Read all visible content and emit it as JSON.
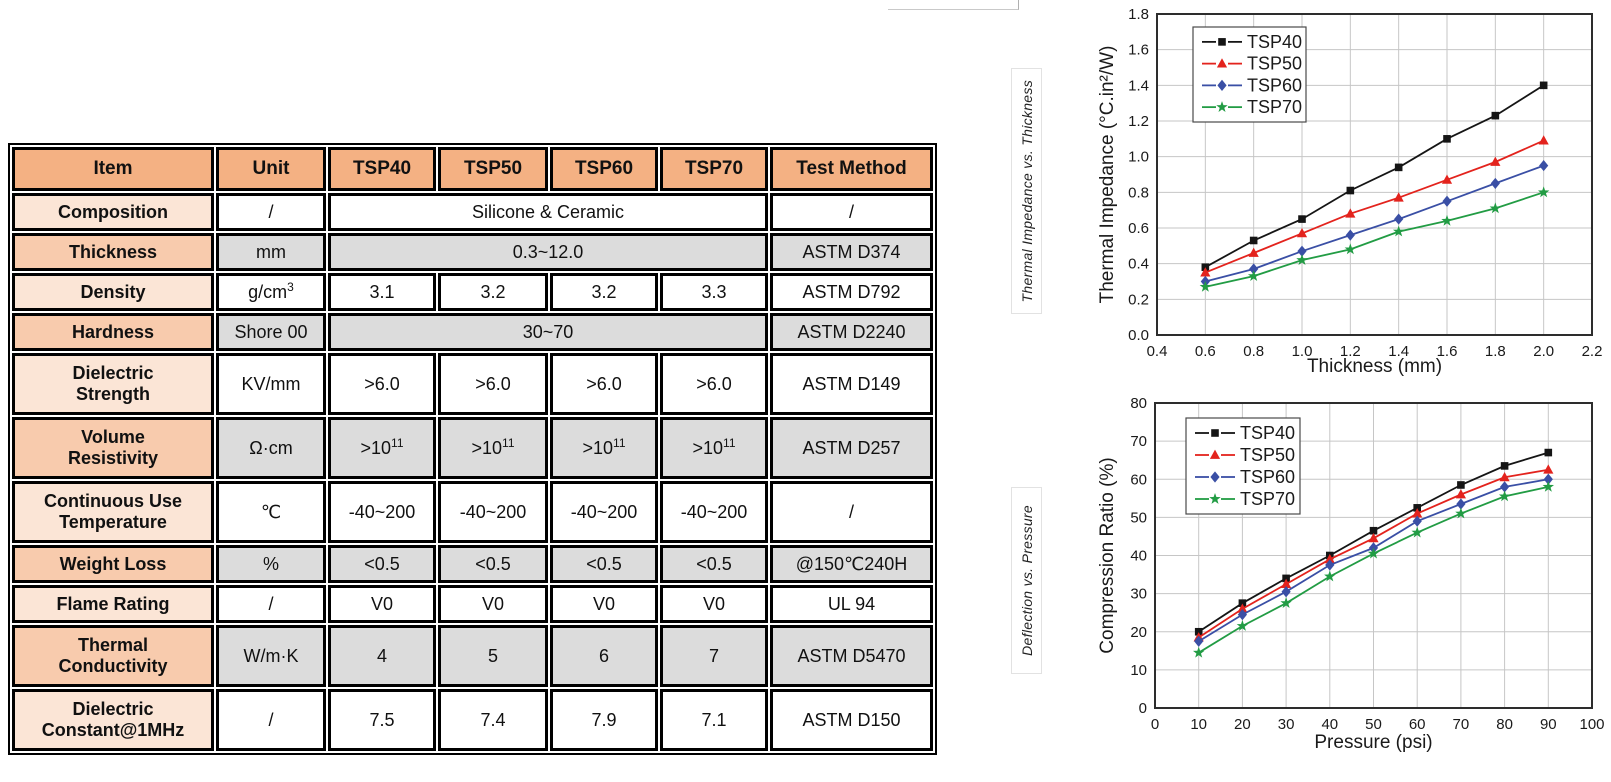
{
  "table": {
    "headers": [
      "Item",
      "Unit",
      "TSP40",
      "TSP50",
      "TSP60",
      "TSP70",
      "Test Method"
    ],
    "rows": [
      {
        "item": "Composition",
        "unit": "/",
        "merged": "Silicone & Ceramic",
        "test": "/",
        "shade": "light",
        "tall": false
      },
      {
        "item": "Thickness",
        "unit": "mm",
        "merged": "0.3~12.0",
        "test": "ASTM D374",
        "shade": "dark",
        "tall": false
      },
      {
        "item": "Density",
        "unit": "g/cm³",
        "values": [
          "3.1",
          "3.2",
          "3.2",
          "3.3"
        ],
        "test": "ASTM D792",
        "shade": "light",
        "tall": false
      },
      {
        "item": "Hardness",
        "unit": "Shore 00",
        "merged": "30~70",
        "test": "ASTM D2240",
        "shade": "dark",
        "tall": false
      },
      {
        "item": "Dielectric Strength",
        "unit": "KV/mm",
        "values": [
          ">6.0",
          ">6.0",
          ">6.0",
          ">6.0"
        ],
        "test": "ASTM D149",
        "shade": "light",
        "tall": true
      },
      {
        "item": "Volume Resistivity",
        "unit": "Ω·cm",
        "values": [
          ">10¹¹",
          ">10¹¹",
          ">10¹¹",
          ">10¹¹"
        ],
        "test": "ASTM D257",
        "shade": "dark",
        "tall": true
      },
      {
        "item": "Continuous Use Temperature",
        "unit": "℃",
        "values": [
          "-40~200",
          "-40~200",
          "-40~200",
          "-40~200"
        ],
        "test": "/",
        "shade": "light",
        "tall": true
      },
      {
        "item": "Weight Loss",
        "unit": "%",
        "values": [
          "<0.5",
          "<0.5",
          "<0.5",
          "<0.5"
        ],
        "test": "@150℃240H",
        "shade": "dark",
        "tall": false
      },
      {
        "item": "Flame Rating",
        "unit": "/",
        "values": [
          "V0",
          "V0",
          "V0",
          "V0"
        ],
        "test": "UL 94",
        "shade": "light",
        "tall": false
      },
      {
        "item": "Thermal Conductivity",
        "unit": "W/m·K",
        "values": [
          "4",
          "5",
          "6",
          "7"
        ],
        "test": "ASTM D5470",
        "shade": "dark",
        "tall": true
      },
      {
        "item": "Dielectric Constant@1MHz",
        "unit": "/",
        "values": [
          "7.5",
          "7.4",
          "7.9",
          "7.1"
        ],
        "test": "ASTM D150",
        "shade": "light",
        "tall": true
      }
    ],
    "colors": {
      "header_bg": "#f4b183",
      "item_light_bg": "#fbe5d6",
      "item_dark_bg": "#f8cbad",
      "cell_gray_bg": "#dcdcdc",
      "cell_white_bg": "#ffffff",
      "border": "#000000"
    }
  },
  "side_labels": {
    "top": "Thermal Impedance vs. Thickness",
    "bottom": "Deflection vs. Pressure"
  },
  "chart_data": [
    {
      "type": "line",
      "title": "Thermal Impedance vs. Thickness",
      "xlabel": "Thickness (mm)",
      "ylabel": "Thermal Impedance (°C.in²/W)",
      "xlim": [
        0.4,
        2.2
      ],
      "xstep": 0.2,
      "xdecimals": 1,
      "ylim": [
        0.0,
        1.8
      ],
      "ystep": 0.2,
      "ydecimals": 1,
      "grid": true,
      "legend_position": "top-left",
      "x": [
        0.6,
        0.8,
        1.0,
        1.2,
        1.4,
        1.6,
        1.8,
        2.0
      ],
      "series": [
        {
          "name": "TSP40",
          "color": "#151515",
          "marker": "square",
          "values": [
            0.38,
            0.53,
            0.65,
            0.81,
            0.94,
            1.1,
            1.23,
            1.4
          ]
        },
        {
          "name": "TSP50",
          "color": "#e3231d",
          "marker": "triangle",
          "values": [
            0.35,
            0.46,
            0.57,
            0.68,
            0.77,
            0.87,
            0.97,
            1.09
          ]
        },
        {
          "name": "TSP60",
          "color": "#3a4fa5",
          "marker": "diamond",
          "values": [
            0.3,
            0.37,
            0.47,
            0.56,
            0.65,
            0.75,
            0.85,
            0.95
          ]
        },
        {
          "name": "TSP70",
          "color": "#229c44",
          "marker": "star",
          "values": [
            0.27,
            0.33,
            0.42,
            0.48,
            0.58,
            0.64,
            0.71,
            0.8
          ]
        }
      ]
    },
    {
      "type": "line",
      "title": "Deflection vs. Pressure",
      "xlabel": "Pressure (psi)",
      "ylabel": "Compression Ratio (%)",
      "xlim": [
        0,
        100
      ],
      "xstep": 10,
      "xdecimals": 0,
      "ylim": [
        0,
        80
      ],
      "ystep": 10,
      "ydecimals": 0,
      "grid": true,
      "legend_position": "top-left",
      "x": [
        10,
        20,
        30,
        40,
        50,
        60,
        70,
        80,
        90
      ],
      "series": [
        {
          "name": "TSP40",
          "color": "#151515",
          "marker": "square",
          "values": [
            20.0,
            27.5,
            34.0,
            40.0,
            46.5,
            52.5,
            58.5,
            63.5,
            67.0
          ]
        },
        {
          "name": "TSP50",
          "color": "#e3231d",
          "marker": "triangle",
          "values": [
            18.5,
            26.0,
            32.5,
            39.0,
            44.5,
            51.0,
            56.0,
            60.5,
            62.5
          ]
        },
        {
          "name": "TSP60",
          "color": "#3a4fa5",
          "marker": "diamond",
          "values": [
            17.5,
            24.5,
            30.5,
            37.5,
            42.0,
            49.0,
            53.5,
            58.0,
            60.0
          ]
        },
        {
          "name": "TSP70",
          "color": "#229c44",
          "marker": "star",
          "values": [
            14.5,
            21.5,
            27.5,
            34.5,
            40.5,
            46.0,
            51.0,
            55.5,
            58.0
          ]
        }
      ]
    }
  ]
}
